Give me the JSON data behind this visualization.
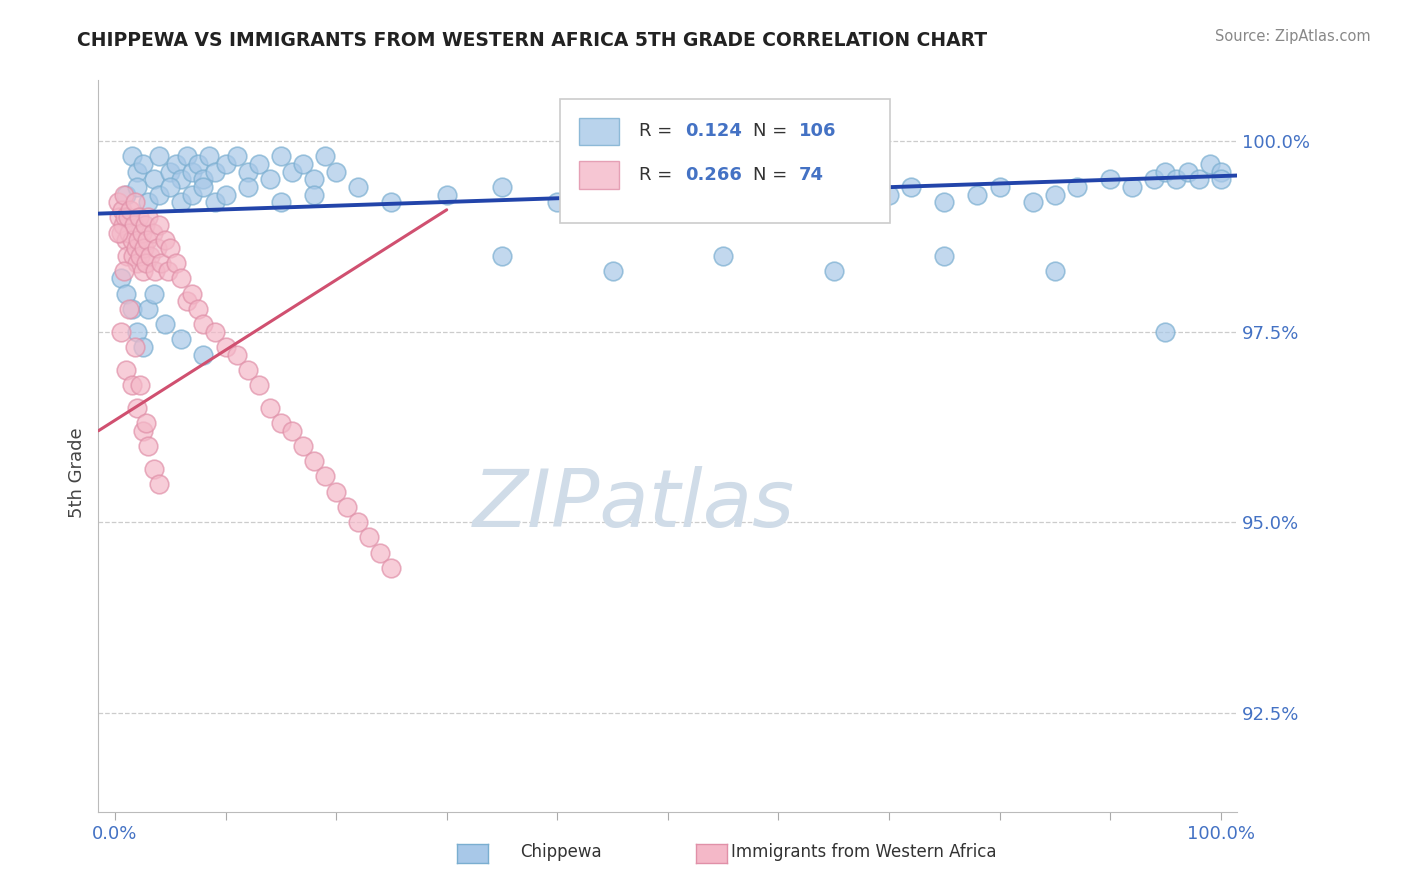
{
  "title": "CHIPPEWA VS IMMIGRANTS FROM WESTERN AFRICA 5TH GRADE CORRELATION CHART",
  "source_text": "Source: ZipAtlas.com",
  "ylabel": "5th Grade",
  "y_min": 91.2,
  "y_max": 100.8,
  "x_min": -1.5,
  "x_max": 101.5,
  "blue_color": "#a8c8e8",
  "pink_color": "#f4b8c8",
  "blue_edge_color": "#7aaed0",
  "pink_edge_color": "#e090a8",
  "blue_line_color": "#2244aa",
  "pink_line_color": "#d05070",
  "title_color": "#222222",
  "watermark_text": "ZIPatlas",
  "watermark_color": "#d0dce8",
  "ytick_color": "#4472c4",
  "xtick_color": "#4472c4",
  "legend_r_color": "#333333",
  "legend_val_color": "#4472c4",
  "blue_line_x": [
    -1.5,
    101.5
  ],
  "blue_line_y": [
    99.05,
    99.55
  ],
  "pink_line_x": [
    -1.5,
    30.0
  ],
  "pink_line_y": [
    96.2,
    99.1
  ],
  "blue_scatter_x": [
    1.5,
    2.0,
    2.5,
    3.5,
    4.0,
    5.0,
    5.5,
    6.0,
    6.5,
    7.0,
    7.5,
    8.0,
    8.5,
    9.0,
    10.0,
    11.0,
    12.0,
    13.0,
    14.0,
    15.0,
    16.0,
    17.0,
    18.0,
    19.0,
    20.0,
    1.0,
    2.0,
    3.0,
    4.0,
    5.0,
    6.0,
    7.0,
    8.0,
    9.0,
    10.0,
    12.0,
    15.0,
    18.0,
    22.0,
    25.0,
    30.0,
    35.0,
    40.0,
    42.0,
    45.0,
    48.0,
    50.0,
    55.0,
    58.0,
    60.0,
    65.0,
    68.0,
    70.0,
    72.0,
    75.0,
    78.0,
    80.0,
    83.0,
    85.0,
    87.0,
    90.0,
    92.0,
    94.0,
    95.0,
    96.0,
    97.0,
    98.0,
    99.0,
    100.0,
    100.0,
    35.0,
    45.0,
    55.0,
    65.0,
    75.0,
    85.0,
    95.0,
    0.5,
    1.0,
    1.5,
    2.0,
    2.5,
    3.0,
    3.5,
    4.5,
    6.0,
    8.0
  ],
  "blue_scatter_y": [
    99.8,
    99.6,
    99.7,
    99.5,
    99.8,
    99.6,
    99.7,
    99.5,
    99.8,
    99.6,
    99.7,
    99.5,
    99.8,
    99.6,
    99.7,
    99.8,
    99.6,
    99.7,
    99.5,
    99.8,
    99.6,
    99.7,
    99.5,
    99.8,
    99.6,
    99.3,
    99.4,
    99.2,
    99.3,
    99.4,
    99.2,
    99.3,
    99.4,
    99.2,
    99.3,
    99.4,
    99.2,
    99.3,
    99.4,
    99.2,
    99.3,
    99.4,
    99.2,
    99.3,
    99.4,
    99.2,
    99.3,
    99.4,
    99.2,
    99.3,
    99.4,
    99.2,
    99.3,
    99.4,
    99.2,
    99.3,
    99.4,
    99.2,
    99.3,
    99.4,
    99.5,
    99.4,
    99.5,
    99.6,
    99.5,
    99.6,
    99.5,
    99.7,
    99.6,
    99.5,
    98.5,
    98.3,
    98.5,
    98.3,
    98.5,
    98.3,
    97.5,
    98.2,
    98.0,
    97.8,
    97.5,
    97.3,
    97.8,
    98.0,
    97.6,
    97.4,
    97.2
  ],
  "pink_scatter_x": [
    0.3,
    0.4,
    0.5,
    0.6,
    0.7,
    0.8,
    0.9,
    1.0,
    1.1,
    1.2,
    1.3,
    1.4,
    1.5,
    1.6,
    1.7,
    1.8,
    1.9,
    2.0,
    2.1,
    2.2,
    2.3,
    2.4,
    2.5,
    2.6,
    2.7,
    2.8,
    2.9,
    3.0,
    3.2,
    3.4,
    3.6,
    3.8,
    4.0,
    4.2,
    4.5,
    4.8,
    5.0,
    5.5,
    6.0,
    6.5,
    7.0,
    7.5,
    8.0,
    9.0,
    10.0,
    11.0,
    12.0,
    13.0,
    14.0,
    15.0,
    16.0,
    17.0,
    18.0,
    19.0,
    20.0,
    21.0,
    22.0,
    23.0,
    24.0,
    25.0,
    0.5,
    1.0,
    1.5,
    2.0,
    2.5,
    3.0,
    3.5,
    4.0,
    0.3,
    0.8,
    1.3,
    1.8,
    2.3,
    2.8
  ],
  "pink_scatter_y": [
    99.2,
    99.0,
    98.8,
    99.1,
    98.9,
    99.3,
    99.0,
    98.7,
    98.5,
    99.0,
    98.8,
    99.1,
    98.7,
    98.5,
    98.9,
    99.2,
    98.6,
    98.4,
    98.7,
    99.0,
    98.5,
    98.8,
    98.3,
    98.6,
    98.9,
    98.4,
    98.7,
    99.0,
    98.5,
    98.8,
    98.3,
    98.6,
    98.9,
    98.4,
    98.7,
    98.3,
    98.6,
    98.4,
    98.2,
    97.9,
    98.0,
    97.8,
    97.6,
    97.5,
    97.3,
    97.2,
    97.0,
    96.8,
    96.5,
    96.3,
    96.2,
    96.0,
    95.8,
    95.6,
    95.4,
    95.2,
    95.0,
    94.8,
    94.6,
    94.4,
    97.5,
    97.0,
    96.8,
    96.5,
    96.2,
    96.0,
    95.7,
    95.5,
    98.8,
    98.3,
    97.8,
    97.3,
    96.8,
    96.3
  ]
}
